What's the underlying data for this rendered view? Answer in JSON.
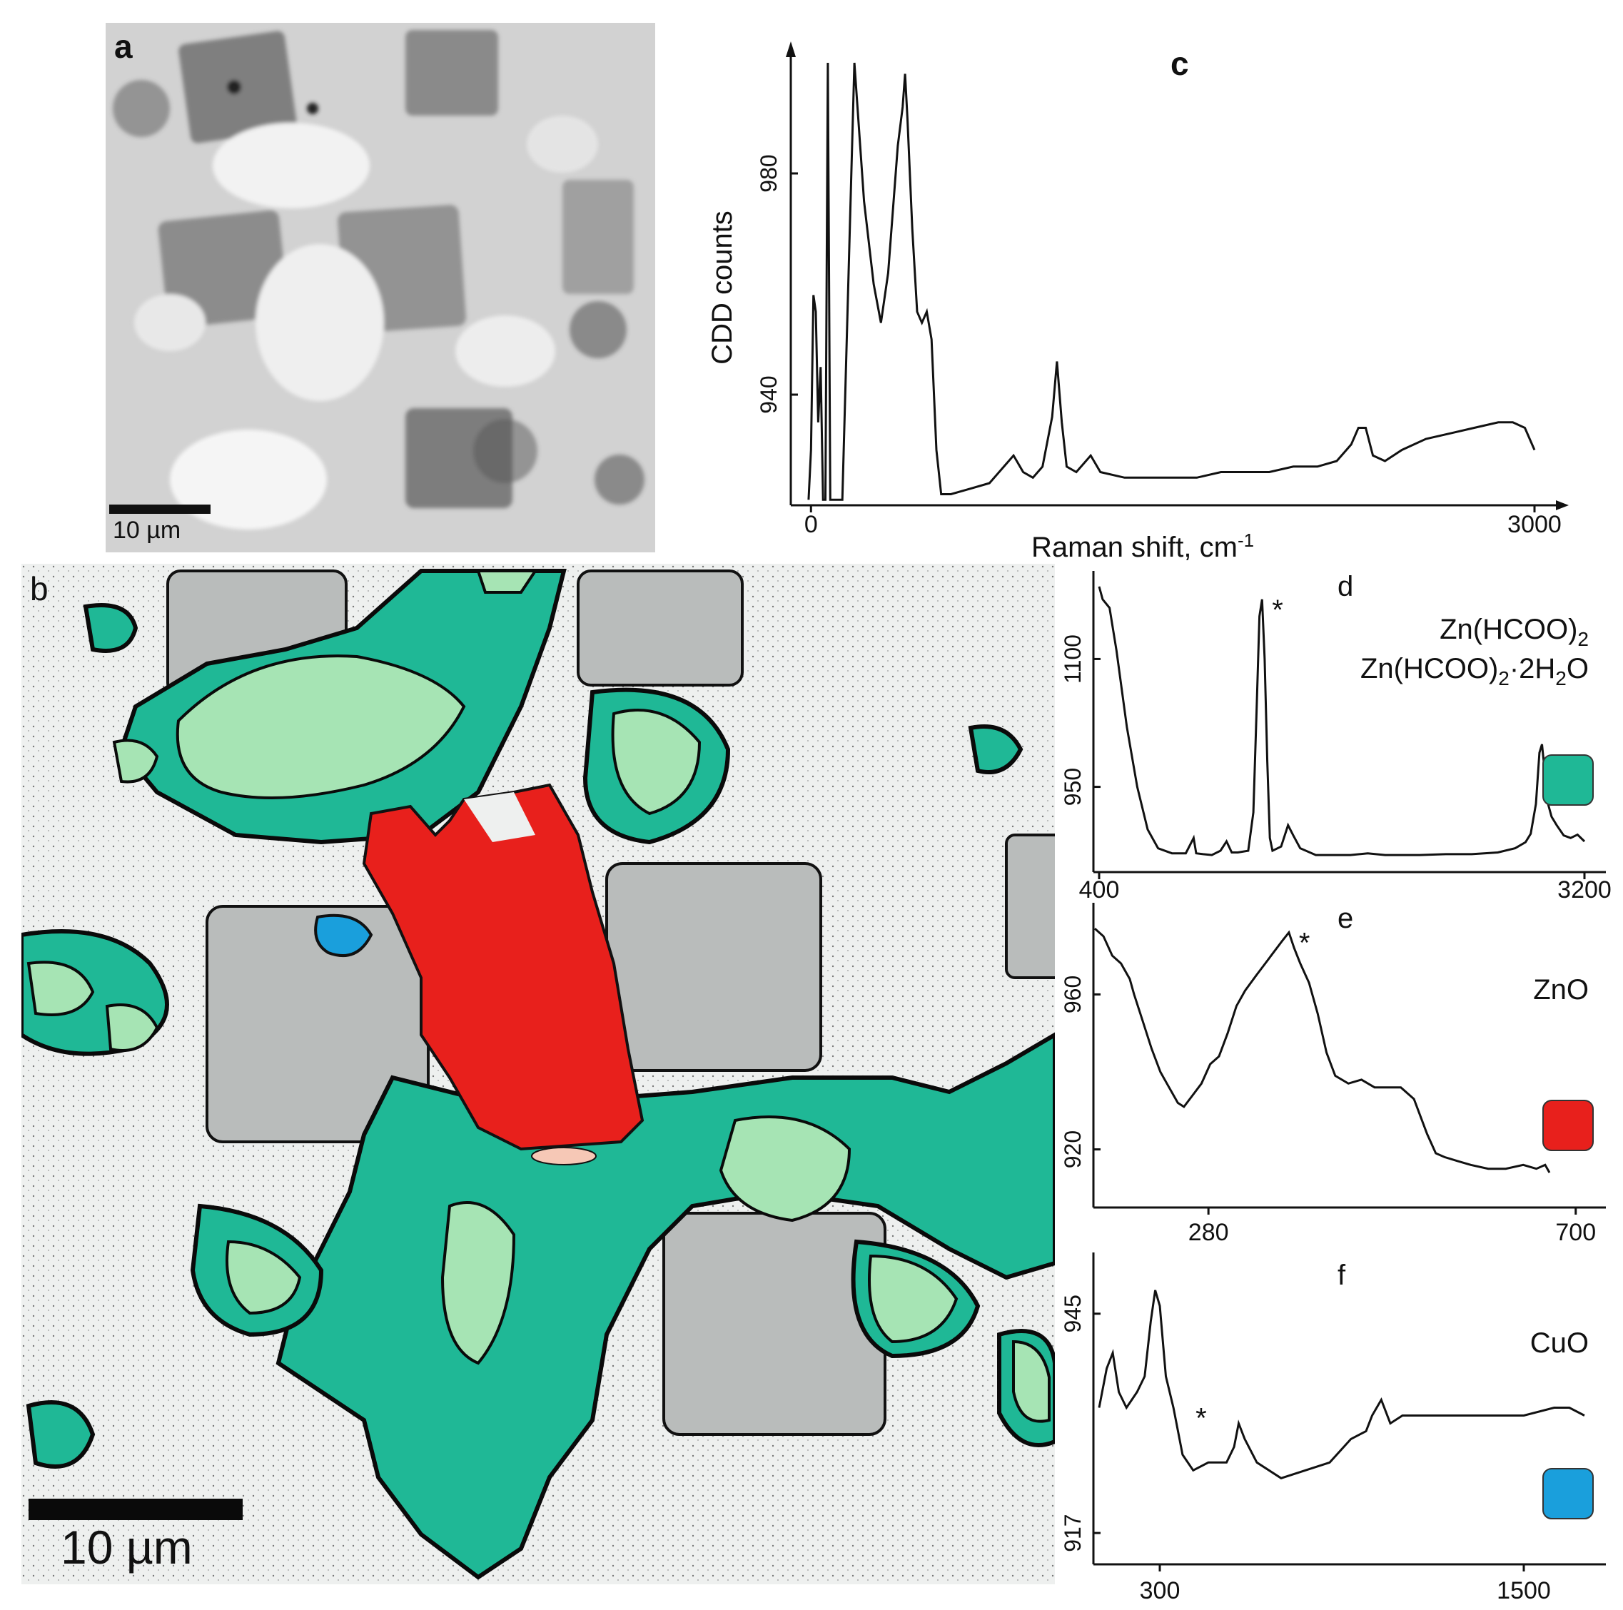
{
  "figure": {
    "panel_a": {
      "label": "a",
      "scale_text": "10 µm"
    },
    "panel_b": {
      "label": "b",
      "scale_text": "10 µm"
    }
  },
  "legend": {
    "d": {
      "compound_1": "Zn(HCOO)",
      "compound_1_sub": "2",
      "compound_2": "Zn(HCOO)",
      "compound_2_sub": "2",
      "compound_2_tail": "·2H",
      "compound_2_sub2": "2",
      "compound_2_end": "O",
      "color": "#1fb896"
    },
    "e": {
      "compound": "ZnO",
      "color": "#e8201c"
    },
    "f": {
      "compound": "CuO",
      "color": "#1a9fdc"
    }
  },
  "colors": {
    "zinc_formate": "#1fb896",
    "zinc_formate_light": "#a6e4b4",
    "zinc_oxide": "#e8201c",
    "copper_oxide": "#1a9fdc",
    "background_micro": "#f1f3f2",
    "crystal_grey": "#bfc3c2"
  },
  "chart_data": [
    {
      "id": "c",
      "type": "line",
      "panel_label": "c",
      "xlabel": "Raman shift, cm",
      "xlabel_sup": "-1",
      "ylabel": "CDD counts",
      "x_ticks": [
        "0",
        "3000"
      ],
      "y_ticks": [
        "940",
        "980"
      ],
      "xlim": [
        -60,
        3000
      ],
      "ylim": [
        920,
        1000
      ],
      "series": [
        {
          "points": [
            [
              -10,
              921
            ],
            [
              0,
              930
            ],
            [
              10,
              958
            ],
            [
              20,
              955
            ],
            [
              30,
              935
            ],
            [
              40,
              945
            ],
            [
              50,
              921
            ],
            [
              60,
              921
            ],
            [
              70,
              1000
            ],
            [
              80,
              921
            ],
            [
              100,
              921
            ],
            [
              130,
              921
            ],
            [
              180,
              1000
            ],
            [
              220,
              975
            ],
            [
              260,
              960
            ],
            [
              290,
              953
            ],
            [
              320,
              962
            ],
            [
              360,
              985
            ],
            [
              380,
              992
            ],
            [
              390,
              998
            ],
            [
              400,
              990
            ],
            [
              420,
              970
            ],
            [
              440,
              955
            ],
            [
              460,
              953
            ],
            [
              480,
              955
            ],
            [
              500,
              950
            ],
            [
              520,
              930
            ],
            [
              540,
              922
            ],
            [
              580,
              922
            ],
            [
              660,
              923
            ],
            [
              740,
              924
            ],
            [
              800,
              927
            ],
            [
              840,
              929
            ],
            [
              880,
              926
            ],
            [
              920,
              925
            ],
            [
              960,
              927
            ],
            [
              1000,
              936
            ],
            [
              1020,
              946
            ],
            [
              1040,
              935
            ],
            [
              1060,
              927
            ],
            [
              1100,
              926
            ],
            [
              1140,
              928
            ],
            [
              1160,
              929
            ],
            [
              1200,
              926
            ],
            [
              1300,
              925
            ],
            [
              1400,
              925
            ],
            [
              1500,
              925
            ],
            [
              1600,
              925
            ],
            [
              1700,
              926
            ],
            [
              1800,
              926
            ],
            [
              1900,
              926
            ],
            [
              2000,
              927
            ],
            [
              2100,
              927
            ],
            [
              2180,
              928
            ],
            [
              2240,
              931
            ],
            [
              2270,
              934
            ],
            [
              2300,
              934
            ],
            [
              2330,
              929
            ],
            [
              2380,
              928
            ],
            [
              2450,
              930
            ],
            [
              2550,
              932
            ],
            [
              2650,
              933
            ],
            [
              2750,
              934
            ],
            [
              2850,
              935
            ],
            [
              2910,
              935
            ],
            [
              2960,
              934
            ],
            [
              3000,
              930
            ]
          ]
        }
      ]
    },
    {
      "id": "d",
      "type": "line",
      "panel_label": "d",
      "x_ticks": [
        "400",
        "3200"
      ],
      "y_ticks": [
        "950",
        "1100"
      ],
      "xlim": [
        400,
        3200
      ],
      "ylim": [
        850,
        1200
      ],
      "annotation": "*",
      "annotation_x": 1340,
      "series": [
        {
          "points": [
            [
              400,
              1185
            ],
            [
              420,
              1170
            ],
            [
              460,
              1160
            ],
            [
              500,
              1110
            ],
            [
              560,
              1020
            ],
            [
              620,
              950
            ],
            [
              680,
              900
            ],
            [
              740,
              878
            ],
            [
              820,
              872
            ],
            [
              900,
              872
            ],
            [
              945,
              890
            ],
            [
              960,
              872
            ],
            [
              1000,
              871
            ],
            [
              1050,
              870
            ],
            [
              1100,
              875
            ],
            [
              1135,
              886
            ],
            [
              1165,
              873
            ],
            [
              1200,
              873
            ],
            [
              1260,
              875
            ],
            [
              1290,
              920
            ],
            [
              1310,
              1050
            ],
            [
              1325,
              1150
            ],
            [
              1340,
              1170
            ],
            [
              1355,
              1100
            ],
            [
              1370,
              980
            ],
            [
              1385,
              890
            ],
            [
              1400,
              875
            ],
            [
              1450,
              880
            ],
            [
              1490,
              905
            ],
            [
              1520,
              893
            ],
            [
              1560,
              878
            ],
            [
              1650,
              870
            ],
            [
              1750,
              870
            ],
            [
              1850,
              870
            ],
            [
              1950,
              872
            ],
            [
              2050,
              870
            ],
            [
              2150,
              870
            ],
            [
              2250,
              870
            ],
            [
              2400,
              871
            ],
            [
              2550,
              871
            ],
            [
              2700,
              873
            ],
            [
              2800,
              878
            ],
            [
              2860,
              885
            ],
            [
              2890,
              895
            ],
            [
              2920,
              930
            ],
            [
              2940,
              990
            ],
            [
              2955,
              1000
            ],
            [
              2970,
              970
            ],
            [
              2990,
              930
            ],
            [
              3010,
              915
            ],
            [
              3040,
              905
            ],
            [
              3080,
              893
            ],
            [
              3120,
              890
            ],
            [
              3160,
              894
            ],
            [
              3200,
              886
            ]
          ]
        }
      ]
    },
    {
      "id": "e",
      "type": "line",
      "panel_label": "e",
      "x_ticks": [
        "280",
        "700"
      ],
      "y_ticks": [
        "920",
        "960"
      ],
      "xlim": [
        155,
        710
      ],
      "ylim": [
        905,
        982
      ],
      "annotation": "*",
      "annotation_x": 372,
      "series": [
        {
          "points": [
            [
              150,
              977
            ],
            [
              160,
              975
            ],
            [
              170,
              970
            ],
            [
              180,
              968
            ],
            [
              190,
              964
            ],
            [
              195,
              960
            ],
            [
              205,
              953
            ],
            [
              215,
              946
            ],
            [
              225,
              940
            ],
            [
              235,
              936
            ],
            [
              245,
              932
            ],
            [
              252,
              931
            ],
            [
              262,
              934
            ],
            [
              272,
              937
            ],
            [
              282,
              942
            ],
            [
              292,
              944
            ],
            [
              302,
              950
            ],
            [
              312,
              957
            ],
            [
              322,
              961
            ],
            [
              335,
              965
            ],
            [
              345,
              968
            ],
            [
              355,
              971
            ],
            [
              365,
              974
            ],
            [
              372,
              976
            ],
            [
              378,
              972
            ],
            [
              385,
              968
            ],
            [
              395,
              963
            ],
            [
              405,
              955
            ],
            [
              415,
              945
            ],
            [
              425,
              939
            ],
            [
              440,
              937
            ],
            [
              455,
              938
            ],
            [
              470,
              936
            ],
            [
              485,
              936
            ],
            [
              500,
              936
            ],
            [
              515,
              933
            ],
            [
              530,
              924
            ],
            [
              540,
              919
            ],
            [
              550,
              918
            ],
            [
              565,
              917
            ],
            [
              580,
              916
            ],
            [
              600,
              915
            ],
            [
              620,
              915
            ],
            [
              640,
              916
            ],
            [
              655,
              915
            ],
            [
              665,
              916
            ],
            [
              670,
              914
            ]
          ]
        }
      ]
    },
    {
      "id": "f",
      "type": "line",
      "panel_label": "f",
      "x_ticks": [
        "300",
        "1500"
      ],
      "y_ticks": [
        "917",
        "945"
      ],
      "xlim": [
        100,
        1700
      ],
      "ylim": [
        913,
        952
      ],
      "annotation": "*",
      "annotation_x": 385,
      "series": [
        {
          "points": [
            [
              100,
              933
            ],
            [
              125,
              938
            ],
            [
              145,
              940
            ],
            [
              165,
              935
            ],
            [
              190,
              933
            ],
            [
              225,
              935
            ],
            [
              250,
              937
            ],
            [
              270,
              944
            ],
            [
              285,
              948
            ],
            [
              300,
              946
            ],
            [
              320,
              937
            ],
            [
              345,
              933
            ],
            [
              375,
              927
            ],
            [
              410,
              925
            ],
            [
              460,
              926
            ],
            [
              520,
              926
            ],
            [
              545,
              928
            ],
            [
              560,
              931
            ],
            [
              580,
              929
            ],
            [
              620,
              926
            ],
            [
              700,
              924
            ],
            [
              780,
              925
            ],
            [
              860,
              926
            ],
            [
              930,
              929
            ],
            [
              980,
              930
            ],
            [
              1000,
              932
            ],
            [
              1030,
              934
            ],
            [
              1060,
              931
            ],
            [
              1100,
              932
            ],
            [
              1200,
              932
            ],
            [
              1300,
              932
            ],
            [
              1400,
              932
            ],
            [
              1500,
              932
            ],
            [
              1600,
              933
            ],
            [
              1650,
              933
            ],
            [
              1700,
              932
            ]
          ]
        }
      ]
    }
  ]
}
